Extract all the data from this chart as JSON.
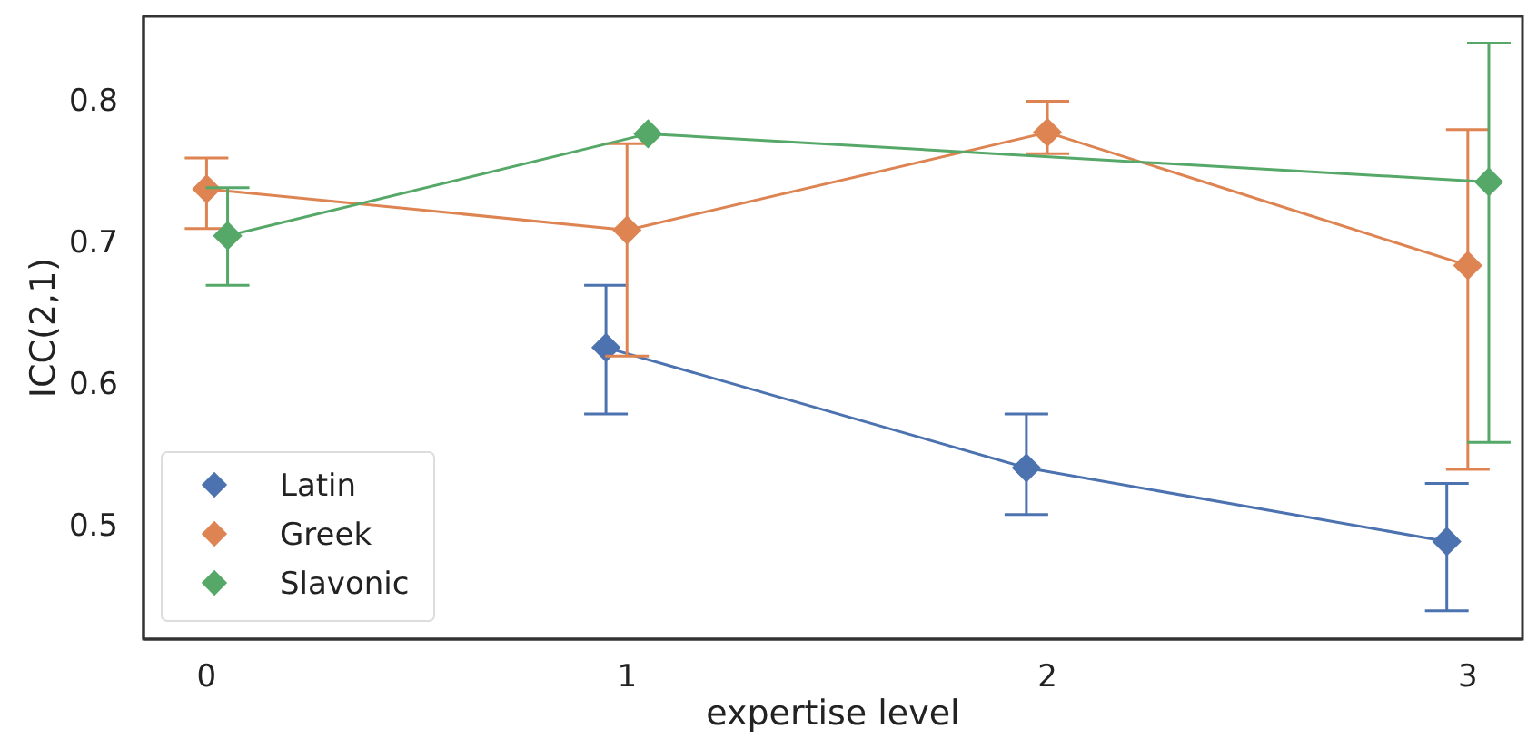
{
  "chart_data": {
    "type": "line",
    "xlabel": "expertise level",
    "ylabel": "ICC(2,1)",
    "xlim": [
      -0.15,
      3.13
    ],
    "xticks": [
      0,
      1,
      2,
      3
    ],
    "ylim": [
      0.42,
      0.86
    ],
    "yticks": [
      0.5,
      0.6,
      0.7,
      0.8
    ],
    "grid": false,
    "legend": "bottom left",
    "marker": "diamond",
    "line_style": "solid",
    "series": [
      {
        "name": "Latin",
        "color": "#4c72b0",
        "x": [
          0.95,
          1.95,
          2.95
        ],
        "values": [
          0.626,
          0.541,
          0.489
        ],
        "errors": [
          [
            0.579,
            0.67
          ],
          [
            0.508,
            0.579
          ],
          [
            0.44,
            0.53
          ]
        ]
      },
      {
        "name": "Greek",
        "color": "#dd8452",
        "x": [
          0,
          1,
          2,
          3
        ],
        "values": [
          0.738,
          0.709,
          0.778,
          0.684
        ],
        "errors": [
          [
            0.71,
            0.76
          ],
          [
            0.62,
            0.77
          ],
          [
            0.763,
            0.8
          ],
          [
            0.54,
            0.78
          ]
        ]
      },
      {
        "name": "Slavonic",
        "color": "#55a868",
        "x": [
          0.05,
          1.05,
          3.05
        ],
        "values": [
          0.705,
          0.777,
          0.743
        ],
        "errors": [
          [
            0.67,
            0.739
          ],
          null,
          [
            0.559,
            0.841
          ]
        ]
      }
    ]
  }
}
